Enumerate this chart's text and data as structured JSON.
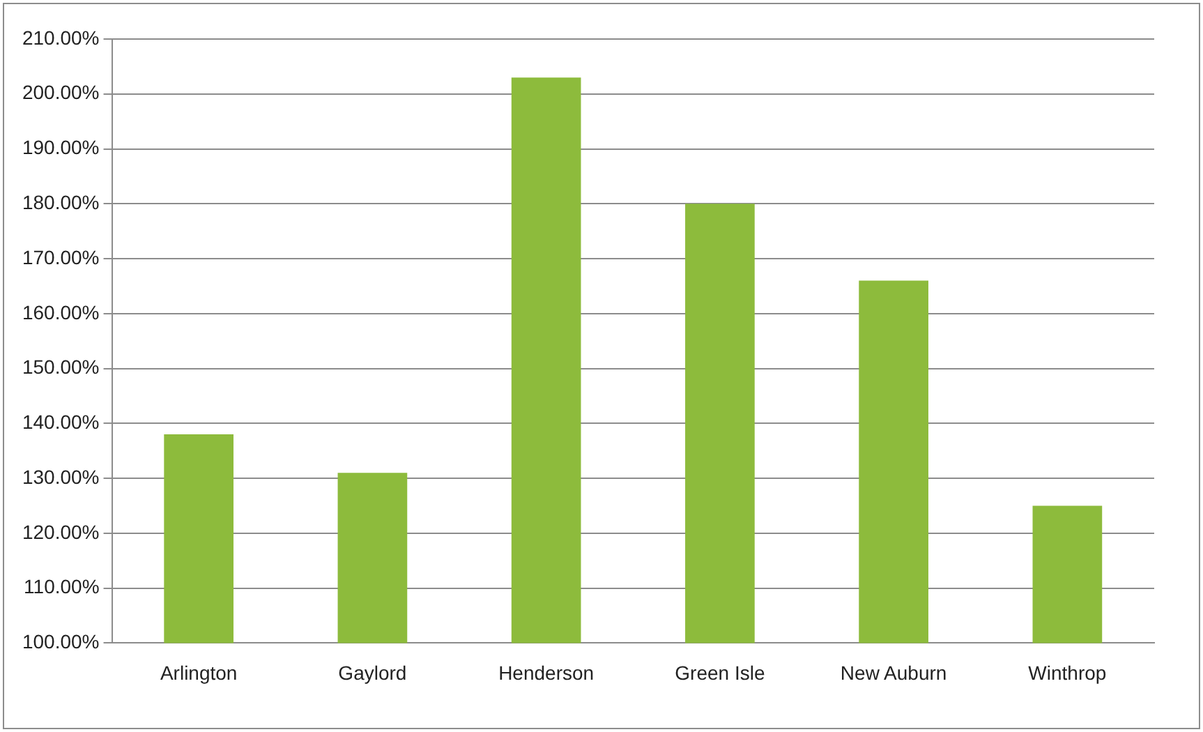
{
  "chart_data": {
    "type": "bar",
    "categories": [
      "Arlington",
      "Gaylord",
      "Henderson",
      "Green Isle",
      "New Auburn",
      "Winthrop"
    ],
    "values": [
      138,
      131,
      203,
      180,
      166,
      125
    ],
    "color": "#8dbb3c",
    "ylim": [
      100,
      210
    ],
    "yticks": [
      {
        "value": 100,
        "label": "100.00%"
      },
      {
        "value": 110,
        "label": "110.00%"
      },
      {
        "value": 120,
        "label": "120.00%"
      },
      {
        "value": 130,
        "label": "130.00%"
      },
      {
        "value": 140,
        "label": "140.00%"
      },
      {
        "value": 150,
        "label": "150.00%"
      },
      {
        "value": 160,
        "label": "160.00%"
      },
      {
        "value": 170,
        "label": "170.00%"
      },
      {
        "value": 180,
        "label": "180.00%"
      },
      {
        "value": 190,
        "label": "190.00%"
      },
      {
        "value": 200,
        "label": "200.00%"
      },
      {
        "value": 210,
        "label": "210.00%"
      }
    ],
    "grid": "y"
  }
}
